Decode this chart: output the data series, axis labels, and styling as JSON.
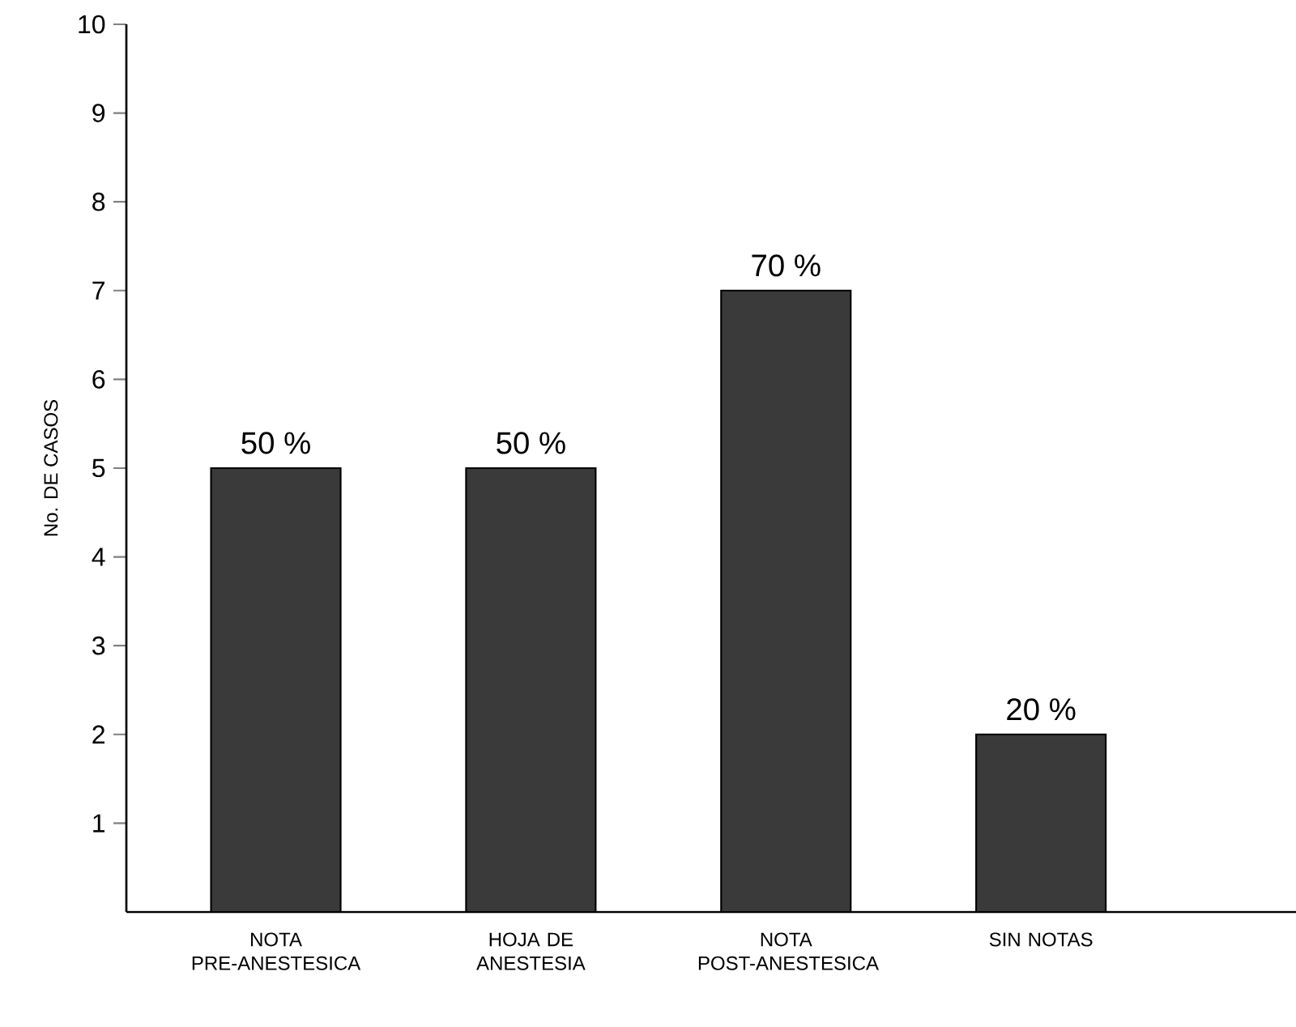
{
  "chart_data": {
    "type": "bar",
    "ylabel": "No. DE CASOS",
    "categories": [
      "NOTA PRE-ANESTESICA",
      "HOJA DE ANESTESIA",
      "NOTA POST-ANESTESICA",
      "SIN NOTAS"
    ],
    "values": [
      5,
      5,
      7,
      2
    ],
    "annotations": [
      {
        "text": "50 %",
        "x": "NOTA PRE-ANESTESICA",
        "y": 5
      },
      {
        "text": "50 %",
        "x": "HOJA DE ANESTESIA",
        "y": 5
      },
      {
        "text": "70 %",
        "x": "NOTA POST-ANESTESICA",
        "y": 7
      },
      {
        "text": "20 %",
        "x": "SIN NOTAS",
        "y": 2
      }
    ],
    "color": "#3a3a3a",
    "ylim": [
      0,
      10
    ],
    "yticks": [
      1,
      2,
      3,
      4,
      5,
      6,
      7,
      8,
      9,
      10
    ],
    "grid": false
  }
}
